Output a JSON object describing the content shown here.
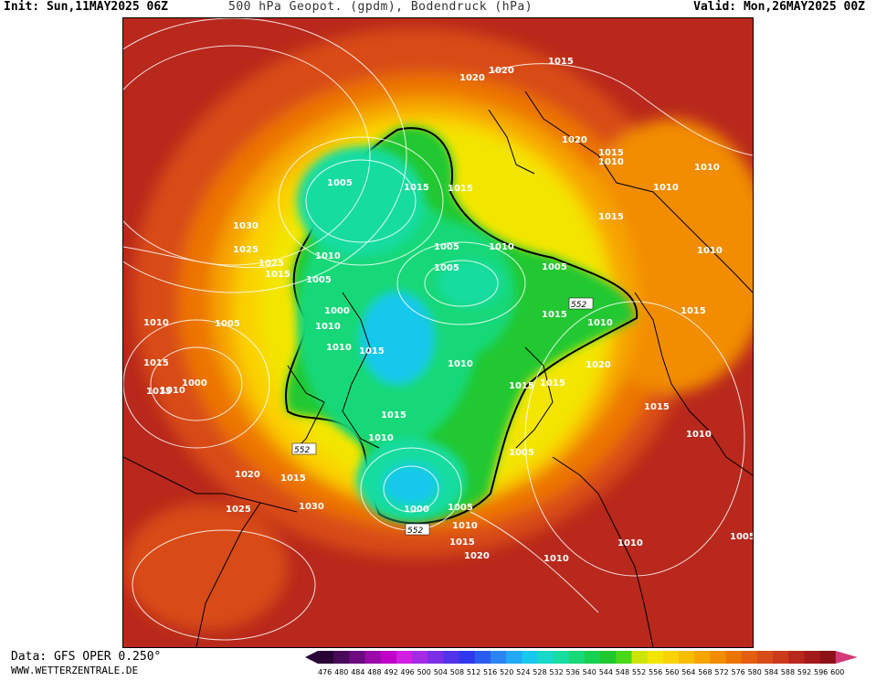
{
  "header": {
    "init": "Init: Sun,11MAY2025 06Z",
    "title": "500 hPa Geopot. (gpdm), Bodendruck (hPa)",
    "valid": "Valid: Mon,26MAY2025 00Z"
  },
  "footer": {
    "data_source": "Data: GFS OPER 0.250°",
    "website": "WWW.WETTERZENTRALE.DE"
  },
  "isobar_labels": [
    "1015",
    "1020",
    "1020",
    "1020",
    "1015",
    "1010",
    "1005",
    "1015",
    "1015",
    "1010",
    "1030",
    "1025",
    "1025",
    "1015",
    "1005",
    "1010",
    "1005",
    "1005",
    "1010",
    "1005",
    "1000",
    "1005",
    "1010",
    "1010",
    "1015",
    "1015",
    "1010",
    "1010",
    "1015",
    "1010",
    "1015",
    "1000",
    "1015",
    "1010",
    "1020",
    "1015",
    "1010",
    "1015",
    "1020",
    "1025",
    "1030",
    "1015",
    "1010",
    "1005",
    "1000",
    "1005",
    "1010",
    "1015",
    "1020",
    "1010",
    "1010",
    "1005",
    "1015",
    "1010",
    "1015",
    "1015",
    "1010"
  ],
  "contour_552_label": "552",
  "legend": {
    "colors": [
      "#2a0036",
      "#4a0a5a",
      "#6d0a80",
      "#9a0aa8",
      "#c000c8",
      "#d21ee0",
      "#a52ae6",
      "#7a2ee6",
      "#5233e8",
      "#2f38ec",
      "#2a5cf0",
      "#2a84f4",
      "#22a8f4",
      "#18c8ec",
      "#18d8c8",
      "#18dca0",
      "#18d878",
      "#18d050",
      "#20c830",
      "#4ad818",
      "#cde400",
      "#f2e600",
      "#fad200",
      "#f8bc00",
      "#f6a400",
      "#f28c00",
      "#ec7400",
      "#e35e10",
      "#d84c18",
      "#cc3a1c",
      "#b8281c",
      "#a41a1a",
      "#8c1218",
      "#d43a7a"
    ],
    "ticks": [
      "476",
      "480",
      "484",
      "488",
      "492",
      "496",
      "500",
      "504",
      "508",
      "512",
      "516",
      "520",
      "524",
      "528",
      "532",
      "536",
      "540",
      "544",
      "548",
      "552",
      "556",
      "560",
      "564",
      "568",
      "572",
      "576",
      "580",
      "584",
      "588",
      "592",
      "596",
      "600"
    ]
  }
}
